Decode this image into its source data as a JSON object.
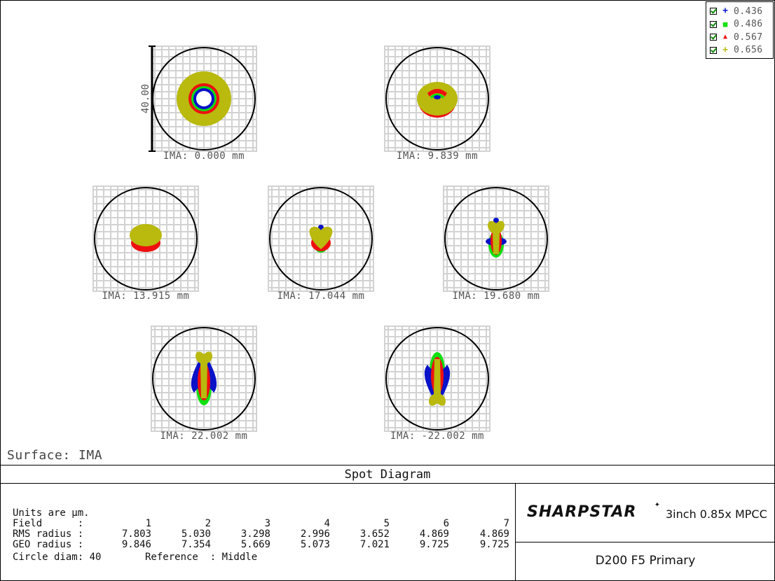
{
  "chart_data": {
    "type": "scatter",
    "title": "Spot Diagram",
    "surface_label": "Surface: IMA",
    "scale_bar_label": "40.00",
    "units_line": "Units are µm.",
    "circle_diam_line": "Circle diam: 40",
    "reference_line": "Reference  : Middle",
    "wavelengths": [
      {
        "label": "0.436",
        "marker": "+",
        "color": "#0a12c8"
      },
      {
        "label": "0.486",
        "marker": "■",
        "color": "#10e010"
      },
      {
        "label": "0.567",
        "marker": "▲",
        "color": "#ee1010"
      },
      {
        "label": "0.656",
        "marker": "+",
        "color": "#b9b90e"
      }
    ],
    "fields": [
      {
        "label": "IMA: 0.000 mm"
      },
      {
        "label": "IMA: 9.839 mm"
      },
      {
        "label": "IMA: 13.915 mm"
      },
      {
        "label": "IMA: 17.044 mm"
      },
      {
        "label": "IMA: 19.680 mm"
      },
      {
        "label": "IMA: 22.002 mm"
      },
      {
        "label": "IMA: -22.002 mm"
      }
    ],
    "table": {
      "field_label": "Field      :",
      "rms_label": "RMS radius :",
      "geo_label": "GEO radius :",
      "field_numbers": [
        "1",
        "2",
        "3",
        "4",
        "5",
        "6",
        "7"
      ],
      "rms_radius": [
        "7.803",
        "5.030",
        "3.298",
        "2.996",
        "3.652",
        "4.869",
        "4.869"
      ],
      "geo_radius": [
        "9.846",
        "7.354",
        "5.669",
        "5.073",
        "7.021",
        "9.725",
        "9.725"
      ]
    }
  },
  "brand": {
    "logo_text": "SHARPSTAR",
    "logo_star": "✦",
    "subtitle": "3inch 0.85x MPCC",
    "design_name": "D200  F5  Primary"
  }
}
